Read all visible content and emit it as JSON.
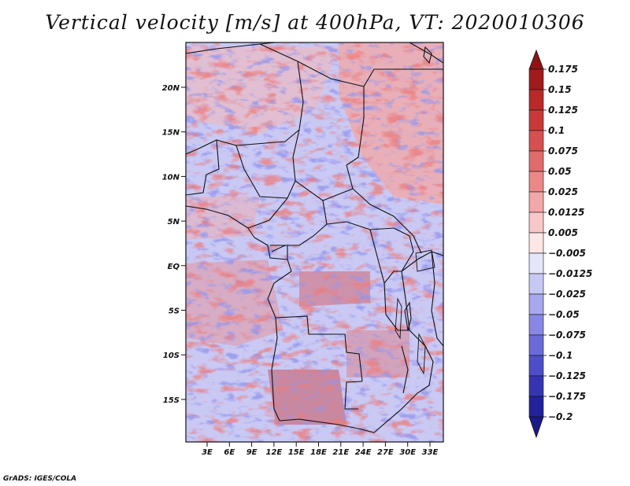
{
  "title": "Vertical velocity [m/s] at 400hPa, VT: 2020010306",
  "footer": "GrADS: IGES/COLA",
  "map": {
    "lat_ticks": [
      "20N",
      "15N",
      "10N",
      "5N",
      "EQ",
      "5S",
      "10S",
      "15S"
    ],
    "lon_ticks": [
      "3E",
      "6E",
      "9E",
      "12E",
      "15E",
      "18E",
      "21E",
      "24E",
      "27E",
      "30E",
      "33E"
    ],
    "field": "vertical velocity"
  },
  "colorbar": {
    "levels": [
      {
        "label": "0.175",
        "color": "#a01c1c"
      },
      {
        "label": "0.15",
        "color": "#b72a2a"
      },
      {
        "label": "0.125",
        "color": "#c83a3a"
      },
      {
        "label": "0.1",
        "color": "#d55050"
      },
      {
        "label": "0.075",
        "color": "#e06b6b"
      },
      {
        "label": "0.05",
        "color": "#ea8888"
      },
      {
        "label": "0.025",
        "color": "#f2a8a8"
      },
      {
        "label": "0.0125",
        "color": "#f8c8c8"
      },
      {
        "label": "0.005",
        "color": "#fde6e6"
      },
      {
        "label": "−0.005",
        "color": "#ffffff"
      },
      {
        "label": "−0.0125",
        "color": "#e6e6fb"
      },
      {
        "label": "−0.025",
        "color": "#c8c8f5"
      },
      {
        "label": "−0.05",
        "color": "#a8a8ee"
      },
      {
        "label": "−0.075",
        "color": "#8888e4"
      },
      {
        "label": "−0.1",
        "color": "#6a6ad8"
      },
      {
        "label": "−0.125",
        "color": "#4e4ec8"
      },
      {
        "label": "−0.175",
        "color": "#3535b4"
      },
      {
        "label": "−0.2",
        "color": "#22229a"
      }
    ],
    "top_cap_color": "#8e1414",
    "bottom_cap_color": "#1a1a88"
  }
}
